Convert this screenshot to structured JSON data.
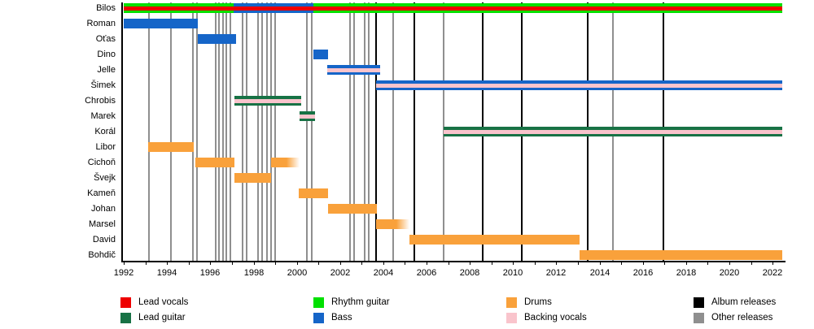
{
  "chart_data": {
    "type": "bar",
    "subtype": "band-members-timeline-gantt",
    "title": "",
    "xlabel": "",
    "ylabel": "",
    "grid": false,
    "legend_position": "bottom",
    "x_axis": {
      "min_year": 1992,
      "max_year": 2022,
      "tick_step": 1,
      "label_step": 2
    },
    "x_tick_labels": [
      "1992",
      "1994",
      "1996",
      "1998",
      "2000",
      "2002",
      "2004",
      "2006",
      "2008",
      "2010",
      "2012",
      "2014",
      "2016",
      "2018",
      "2020",
      "2022"
    ],
    "members": [
      {
        "name": "Bilos",
        "segments": [
          {
            "from": 1992.0,
            "to": 1997.08,
            "roles": [
              "rhythm_guitar",
              "lead_vocals",
              "rhythm_guitar"
            ]
          },
          {
            "from": 1997.08,
            "to": 2000.77,
            "roles": [
              "bass",
              "lead_vocals",
              "bass"
            ]
          },
          {
            "from": 2000.77,
            "to": 2022.45,
            "roles": [
              "rhythm_guitar",
              "lead_vocals",
              "rhythm_guitar"
            ]
          }
        ]
      },
      {
        "name": "Roman",
        "segments": [
          {
            "from": 1992.0,
            "to": 1995.42,
            "roles": [
              "bass"
            ]
          }
        ]
      },
      {
        "name": "Oťas",
        "segments": [
          {
            "from": 1995.42,
            "to": 1997.19,
            "roles": [
              "bass"
            ]
          }
        ]
      },
      {
        "name": "Dino",
        "segments": [
          {
            "from": 2000.77,
            "to": 2001.46,
            "roles": [
              "bass"
            ]
          }
        ]
      },
      {
        "name": "Jelle",
        "segments": [
          {
            "from": 2001.41,
            "to": 2003.85,
            "roles": [
              "bass",
              "backing_vocals",
              "bass"
            ]
          }
        ]
      },
      {
        "name": "Šimek",
        "segments": [
          {
            "from": 2003.67,
            "to": 2022.45,
            "roles": [
              "bass",
              "backing_vocals",
              "bass"
            ]
          }
        ]
      },
      {
        "name": "Chrobis",
        "segments": [
          {
            "from": 1997.12,
            "to": 2000.2,
            "roles": [
              "lead_guitar",
              "backing_vocals",
              "lead_guitar"
            ]
          }
        ]
      },
      {
        "name": "Marek",
        "segments": [
          {
            "from": 2000.13,
            "to": 2000.84,
            "roles": [
              "lead_guitar",
              "backing_vocals",
              "lead_guitar"
            ]
          }
        ]
      },
      {
        "name": "Korál",
        "segments": [
          {
            "from": 2006.79,
            "to": 2022.45,
            "roles": [
              "lead_guitar",
              "backing_vocals",
              "lead_guitar"
            ]
          }
        ]
      },
      {
        "name": "Libor",
        "segments": [
          {
            "from": 1993.13,
            "to": 1995.24,
            "roles": [
              "drums"
            ]
          }
        ]
      },
      {
        "name": "Cichoň",
        "segments": [
          {
            "from": 1995.31,
            "to": 1997.12,
            "roles": [
              "drums"
            ]
          },
          {
            "from": 1998.81,
            "to": 2000.13,
            "roles": [
              "drums"
            ],
            "fade_right": true
          }
        ]
      },
      {
        "name": "Švejk",
        "segments": [
          {
            "from": 1997.12,
            "to": 1998.81,
            "roles": [
              "drums"
            ]
          }
        ]
      },
      {
        "name": "Kameň",
        "segments": [
          {
            "from": 2000.09,
            "to": 2001.46,
            "roles": [
              "drums"
            ]
          }
        ]
      },
      {
        "name": "Johan",
        "segments": [
          {
            "from": 2001.46,
            "to": 2003.72,
            "roles": [
              "drums"
            ]
          }
        ]
      },
      {
        "name": "Marsel",
        "segments": [
          {
            "from": 2003.67,
            "to": 2005.21,
            "roles": [
              "drums"
            ],
            "fade_right": true
          }
        ]
      },
      {
        "name": "David",
        "segments": [
          {
            "from": 2005.21,
            "to": 2013.08,
            "roles": [
              "drums"
            ]
          }
        ]
      },
      {
        "name": "Bohdič",
        "segments": [
          {
            "from": 2013.08,
            "to": 2022.45,
            "roles": [
              "drums"
            ]
          }
        ]
      }
    ],
    "releases": {
      "albums": [
        2003.66,
        2005.44,
        2008.61,
        2010.39,
        2013.44,
        2016.95
      ],
      "other": [
        1993.18,
        1994.18,
        1995.21,
        1995.38,
        1996.25,
        1996.41,
        1996.59,
        1996.75,
        1996.94,
        1997.51,
        1997.69,
        1998.2,
        1998.39,
        1998.63,
        1998.82,
        1999.01,
        2000.46,
        2000.7,
        2002.46,
        2002.65,
        2003.15,
        2003.32,
        2004.47,
        2006.79,
        2014.63
      ]
    }
  },
  "colors": {
    "lead_vocals": "#ee0000",
    "lead_guitar": "#177245",
    "rhythm_guitar": "#00e000",
    "bass": "#1565c8",
    "drums": "#f9a13b",
    "backing_vocals": "#f9c4cc",
    "album_releases": "#000000",
    "other_releases": "#8f8f8f"
  },
  "legend": {
    "items": [
      {
        "label": "Lead vocals",
        "color_key": "lead_vocals"
      },
      {
        "label": "Lead guitar",
        "color_key": "lead_guitar"
      },
      {
        "label": "Rhythm guitar",
        "color_key": "rhythm_guitar"
      },
      {
        "label": "Bass",
        "color_key": "bass"
      },
      {
        "label": "Drums",
        "color_key": "drums"
      },
      {
        "label": "Backing vocals",
        "color_key": "backing_vocals"
      },
      {
        "label": "Album releases",
        "color_key": "album_releases"
      },
      {
        "label": "Other releases",
        "color_key": "other_releases"
      }
    ]
  }
}
